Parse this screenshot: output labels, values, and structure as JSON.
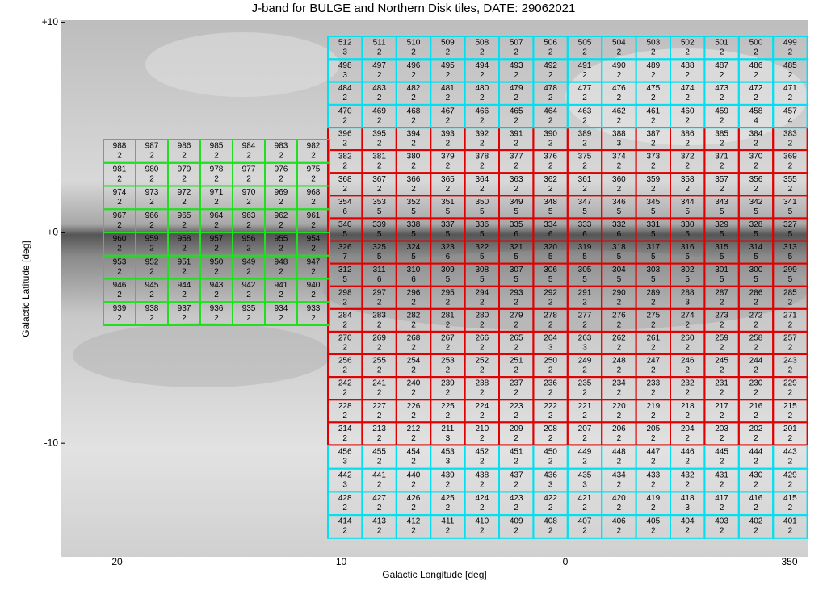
{
  "chart_data": {
    "type": "tile-map",
    "title": "J-band for BULGE and Northern Disk tiles, DATE: 29062021",
    "xlabel": "Galactic Longitude [deg]",
    "ylabel": "Galactic Latitude [deg]",
    "xticks": [
      20,
      10,
      0,
      350
    ],
    "yticks": [
      {
        "value": 10,
        "label": "+10"
      },
      {
        "value": 0,
        "label": "+0"
      },
      -10
    ],
    "ylim": [
      -15.4,
      10.1
    ],
    "groups": [
      {
        "color": "#e00000",
        "ids": [
          [
            396,
            395,
            394,
            393,
            392,
            391,
            390,
            389,
            388,
            387,
            386,
            385,
            384,
            383
          ],
          [
            382,
            381,
            380,
            379,
            378,
            377,
            376,
            375,
            374,
            373,
            372,
            371,
            370,
            369
          ],
          [
            368,
            367,
            366,
            365,
            364,
            363,
            362,
            361,
            360,
            359,
            358,
            357,
            356,
            355
          ],
          [
            354,
            353,
            352,
            351,
            350,
            349,
            348,
            347,
            346,
            345,
            344,
            343,
            342,
            341
          ],
          [
            340,
            339,
            338,
            337,
            336,
            335,
            334,
            333,
            332,
            331,
            330,
            329,
            328,
            327
          ],
          [
            326,
            325,
            324,
            323,
            322,
            321,
            320,
            319,
            318,
            317,
            316,
            315,
            314,
            313
          ],
          [
            312,
            311,
            310,
            309,
            308,
            307,
            306,
            305,
            304,
            303,
            302,
            301,
            300,
            299
          ],
          [
            298,
            297,
            296,
            295,
            294,
            293,
            292,
            291,
            290,
            289,
            288,
            287,
            286,
            285
          ],
          [
            284,
            283,
            282,
            281,
            280,
            279,
            278,
            277,
            276,
            275,
            274,
            273,
            272,
            271
          ],
          [
            270,
            269,
            268,
            267,
            266,
            265,
            264,
            263,
            262,
            261,
            260,
            259,
            258,
            257
          ],
          [
            256,
            255,
            254,
            253,
            252,
            251,
            250,
            249,
            248,
            247,
            246,
            245,
            244,
            243
          ],
          [
            242,
            241,
            240,
            239,
            238,
            237,
            236,
            235,
            234,
            233,
            232,
            231,
            230,
            229
          ],
          [
            228,
            227,
            226,
            225,
            224,
            223,
            222,
            221,
            220,
            219,
            218,
            217,
            216,
            215
          ],
          [
            214,
            213,
            212,
            211,
            210,
            209,
            208,
            207,
            206,
            205,
            204,
            203,
            202,
            201
          ]
        ],
        "counts": [
          [
            2,
            2,
            2,
            2,
            2,
            2,
            2,
            2,
            3,
            2,
            2,
            2,
            2,
            2
          ],
          [
            2,
            2,
            2,
            2,
            2,
            2,
            2,
            2,
            2,
            2,
            2,
            2,
            2,
            2
          ],
          [
            2,
            2,
            2,
            2,
            2,
            2,
            2,
            2,
            2,
            2,
            2,
            2,
            2,
            2
          ],
          [
            6,
            5,
            5,
            5,
            5,
            5,
            5,
            5,
            5,
            5,
            5,
            5,
            5,
            5
          ],
          [
            5,
            5,
            5,
            5,
            5,
            6,
            6,
            6,
            6,
            5,
            5,
            5,
            5,
            5
          ],
          [
            7,
            5,
            5,
            6,
            5,
            5,
            5,
            5,
            5,
            5,
            5,
            5,
            5,
            5
          ],
          [
            5,
            6,
            6,
            5,
            5,
            5,
            5,
            5,
            5,
            5,
            5,
            5,
            5,
            5
          ],
          [
            2,
            2,
            2,
            2,
            2,
            2,
            2,
            2,
            2,
            2,
            3,
            2,
            2,
            2
          ],
          [
            2,
            2,
            2,
            2,
            2,
            2,
            2,
            2,
            2,
            2,
            2,
            2,
            2,
            2
          ],
          [
            2,
            2,
            2,
            2,
            2,
            2,
            3,
            3,
            2,
            2,
            2,
            2,
            2,
            2
          ],
          [
            2,
            2,
            2,
            2,
            2,
            2,
            2,
            2,
            2,
            2,
            2,
            2,
            2,
            2
          ],
          [
            2,
            2,
            2,
            2,
            2,
            2,
            2,
            2,
            2,
            2,
            2,
            2,
            2,
            2
          ],
          [
            2,
            2,
            2,
            2,
            2,
            2,
            2,
            2,
            2,
            2,
            2,
            2,
            2,
            2
          ],
          [
            2,
            2,
            2,
            3,
            2,
            2,
            2,
            2,
            2,
            2,
            2,
            2,
            2,
            2
          ]
        ]
      },
      {
        "color": "#00e0f0",
        "ids": [
          [
            512,
            511,
            510,
            509,
            508,
            507,
            506,
            505,
            504,
            503,
            502,
            501,
            500,
            499
          ],
          [
            498,
            497,
            496,
            495,
            494,
            493,
            492,
            491,
            490,
            489,
            488,
            487,
            486,
            485
          ],
          [
            484,
            483,
            482,
            481,
            480,
            479,
            478,
            477,
            476,
            475,
            474,
            473,
            472,
            471
          ],
          [
            470,
            469,
            468,
            467,
            466,
            465,
            464,
            463,
            462,
            461,
            460,
            459,
            458,
            457
          ]
        ],
        "counts": [
          [
            3,
            2,
            2,
            2,
            2,
            2,
            2,
            2,
            2,
            2,
            2,
            2,
            2,
            2
          ],
          [
            3,
            2,
            2,
            2,
            2,
            2,
            2,
            2,
            2,
            2,
            2,
            2,
            2,
            2
          ],
          [
            2,
            2,
            2,
            2,
            2,
            2,
            2,
            2,
            2,
            2,
            2,
            2,
            2,
            2
          ],
          [
            2,
            2,
            2,
            2,
            2,
            2,
            2,
            2,
            2,
            2,
            2,
            2,
            4,
            4
          ]
        ]
      },
      {
        "color": "#00e0f0",
        "ids": [
          [
            456,
            455,
            454,
            453,
            452,
            451,
            450,
            449,
            448,
            447,
            446,
            445,
            444,
            443
          ],
          [
            442,
            441,
            440,
            439,
            438,
            437,
            436,
            435,
            434,
            433,
            432,
            431,
            430,
            429
          ],
          [
            428,
            427,
            426,
            425,
            424,
            423,
            422,
            421,
            420,
            419,
            418,
            417,
            416,
            415
          ],
          [
            414,
            413,
            412,
            411,
            410,
            409,
            408,
            407,
            406,
            405,
            404,
            403,
            402,
            401
          ]
        ],
        "counts": [
          [
            3,
            2,
            2,
            3,
            2,
            2,
            2,
            2,
            2,
            2,
            2,
            2,
            2,
            2
          ],
          [
            3,
            2,
            2,
            2,
            2,
            2,
            3,
            3,
            2,
            2,
            2,
            2,
            2,
            2
          ],
          [
            2,
            2,
            2,
            2,
            2,
            2,
            2,
            2,
            2,
            2,
            3,
            2,
            2,
            2
          ],
          [
            2,
            2,
            2,
            2,
            2,
            2,
            2,
            2,
            2,
            2,
            2,
            2,
            2,
            2
          ]
        ]
      },
      {
        "color": "#22dd22",
        "ids": [
          [
            988,
            987,
            986,
            985,
            984,
            983,
            982
          ],
          [
            981,
            980,
            979,
            978,
            977,
            976,
            975
          ],
          [
            974,
            973,
            972,
            971,
            970,
            969,
            968
          ],
          [
            967,
            966,
            965,
            964,
            963,
            962,
            961
          ],
          [
            960,
            959,
            958,
            957,
            956,
            955,
            954
          ],
          [
            953,
            952,
            951,
            950,
            949,
            948,
            947
          ],
          [
            946,
            945,
            944,
            943,
            942,
            941,
            940
          ],
          [
            939,
            938,
            937,
            936,
            935,
            934,
            933
          ]
        ],
        "counts": [
          [
            2,
            2,
            2,
            2,
            2,
            2,
            2
          ],
          [
            2,
            2,
            2,
            2,
            2,
            2,
            2
          ],
          [
            2,
            2,
            2,
            2,
            2,
            2,
            2
          ],
          [
            2,
            2,
            2,
            2,
            2,
            2,
            2
          ],
          [
            2,
            2,
            2,
            2,
            2,
            2,
            2
          ],
          [
            2,
            2,
            2,
            2,
            2,
            2,
            2
          ],
          [
            2,
            2,
            2,
            2,
            2,
            2,
            2
          ],
          [
            2,
            2,
            2,
            2,
            2,
            2,
            2
          ]
        ]
      }
    ]
  }
}
